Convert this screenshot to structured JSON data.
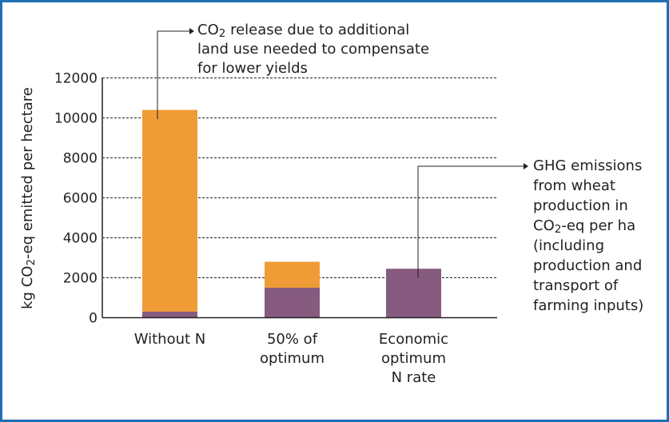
{
  "chart_data": {
    "type": "bar",
    "stacked": true,
    "title": "",
    "xlabel": "",
    "ylabel": "kg CO2-eq emitted per hectare",
    "ylim": [
      0,
      12000
    ],
    "yticks": [
      0,
      2000,
      4000,
      6000,
      8000,
      10000,
      12000
    ],
    "grid": true,
    "categories": [
      [
        "Without N"
      ],
      [
        "50% of",
        "optimum"
      ],
      [
        "Economic",
        "optimum",
        "N rate"
      ]
    ],
    "series": [
      {
        "name": "GHG emissions from wheat production in CO2-eq per ha (including production and transport of farming inputs)",
        "color": "#875a7f",
        "values": [
          300,
          1500,
          2450
        ]
      },
      {
        "name": "CO2 release due to additional land use needed to compensate for lower yields",
        "color": "#ef9c37",
        "values": [
          10100,
          1300,
          0
        ]
      }
    ],
    "annotations": [
      {
        "lines": [
          "CO2 release due to additional",
          "land use needed to compensate",
          "for lower yields"
        ]
      },
      {
        "lines": [
          "GHG emissions",
          "from wheat",
          "production in",
          "CO2-eq per ha",
          "(including",
          "production and",
          "transport of",
          "farming inputs)"
        ]
      }
    ]
  }
}
